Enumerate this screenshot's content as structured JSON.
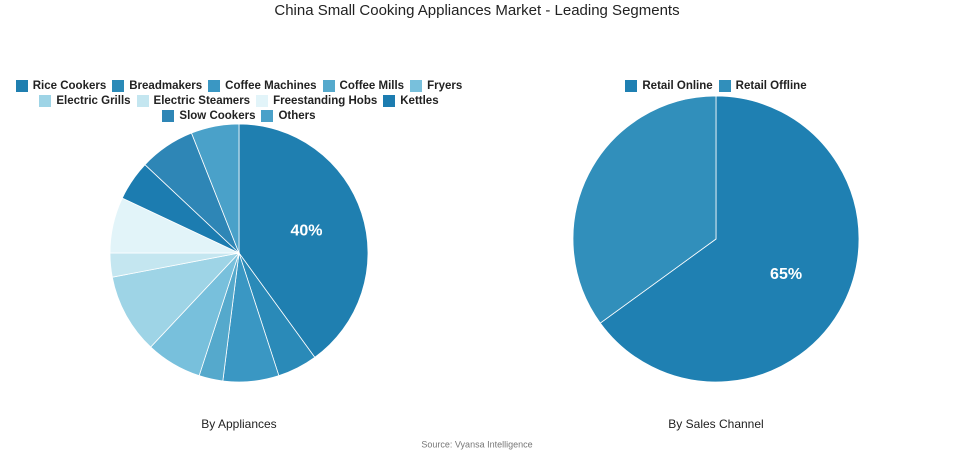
{
  "title": "China Small Cooking Appliances Market - Leading Segments",
  "source": "Source: Vyansa Intelligence",
  "chart_data": [
    {
      "type": "pie",
      "title": "By Appliances",
      "categories": [
        "Rice Cookers",
        "Breadmakers",
        "Coffee Machines",
        "Coffee Mills",
        "Fryers",
        "Electric Grills",
        "Electric Steamers",
        "Freestanding Hobs",
        "Kettles",
        "Slow Cookers",
        "Others"
      ],
      "values": [
        40,
        5,
        7,
        3,
        7,
        10,
        3,
        7,
        5,
        7,
        6
      ],
      "value_labels": [
        "40%",
        null,
        null,
        null,
        null,
        null,
        null,
        null,
        null,
        null,
        null
      ],
      "colors": [
        "#1f7fb0",
        "#2a8ab8",
        "#3a97c3",
        "#55a9cc",
        "#78c0dc",
        "#9ed4e6",
        "#c4e6f0",
        "#e2f4f9",
        "#1c7cb0",
        "#2e86b6",
        "#4aa1c9"
      ]
    },
    {
      "type": "pie",
      "title": "By Sales Channel",
      "categories": [
        "Retail Online",
        "Retail Offline"
      ],
      "values": [
        65,
        35
      ],
      "value_labels": [
        "65%",
        null
      ],
      "colors": [
        "#1f80b2",
        "#318fbb"
      ]
    }
  ]
}
